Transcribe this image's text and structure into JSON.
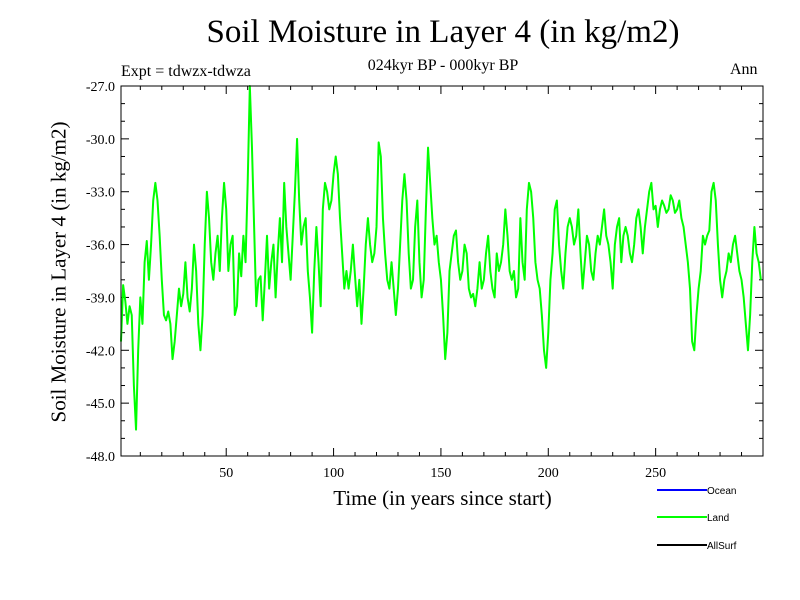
{
  "chart_data": {
    "type": "line",
    "title": "Soil Moisture in Layer 4 (in kg/m2)",
    "subtitle": "024kyr BP - 000kyr BP",
    "experiment": "Expt = tdwzx-tdwza",
    "season": "Ann",
    "xlabel": "Time (in years since start)",
    "ylabel": "Soil Moisture in Layer 4 (in kg/m2)",
    "xlim": [
      1,
      300
    ],
    "ylim": [
      -48,
      -27
    ],
    "x_ticks": [
      50,
      100,
      150,
      200,
      250
    ],
    "y_ticks": [
      -27,
      -30,
      -33,
      -36,
      -39,
      -42,
      -45,
      -48
    ],
    "y_tick_labels": [
      "-27.0",
      "-30.0",
      "-33.0",
      "-36.0",
      "-39.0",
      "-42.0",
      "-45.0",
      "-48.0"
    ],
    "legend": [
      {
        "name": "Ocean",
        "color": "#0000ff"
      },
      {
        "name": "Land",
        "color": "#00ff00"
      },
      {
        "name": "AllSurf",
        "color": "#000000"
      }
    ],
    "series": [
      {
        "name": "Land",
        "color": "#00ff00",
        "start_x": 1,
        "step": 1,
        "values": [
          -41.5,
          -38.3,
          -39.2,
          -40.5,
          -39.5,
          -40.0,
          -44.0,
          -46.5,
          -42.0,
          -39.0,
          -40.5,
          -37.0,
          -35.8,
          -38.0,
          -36.0,
          -33.5,
          -32.5,
          -33.5,
          -35.5,
          -38.0,
          -40.0,
          -40.3,
          -39.8,
          -40.5,
          -42.5,
          -41.5,
          -40.0,
          -38.5,
          -39.5,
          -38.8,
          -37.0,
          -39.0,
          -39.8,
          -38.5,
          -36.0,
          -37.5,
          -40.5,
          -42.0,
          -40.0,
          -36.0,
          -33.0,
          -34.5,
          -37.0,
          -38.0,
          -36.5,
          -35.5,
          -37.5,
          -34.5,
          -32.5,
          -34.0,
          -37.5,
          -36.0,
          -35.5,
          -40.0,
          -39.5,
          -36.5,
          -37.8,
          -35.5,
          -37.0,
          -32.5,
          -27.0,
          -30.5,
          -35.0,
          -39.5,
          -38.0,
          -37.8,
          -40.3,
          -38.0,
          -35.5,
          -38.5,
          -37.0,
          -36.0,
          -39.0,
          -36.5,
          -34.5,
          -37.0,
          -32.5,
          -35.0,
          -36.5,
          -38.0,
          -35.5,
          -33.0,
          -30.0,
          -33.5,
          -36.0,
          -35.0,
          -34.5,
          -37.5,
          -39.0,
          -41.0,
          -37.5,
          -35.0,
          -37.0,
          -39.5,
          -34.0,
          -32.5,
          -33.0,
          -34.0,
          -33.5,
          -32.0,
          -31.0,
          -32.0,
          -34.5,
          -36.5,
          -38.5,
          -37.5,
          -38.5,
          -37.5,
          -36.0,
          -37.8,
          -39.5,
          -38.0,
          -40.5,
          -38.5,
          -36.0,
          -34.5,
          -36.0,
          -37.0,
          -36.5,
          -35.0,
          -30.2,
          -31.0,
          -34.5,
          -36.5,
          -38.0,
          -38.5,
          -37.0,
          -38.5,
          -40.0,
          -38.5,
          -36.0,
          -33.5,
          -32.0,
          -33.5,
          -36.5,
          -38.5,
          -38.0,
          -35.0,
          -33.5,
          -37.0,
          -39.0,
          -38.0,
          -34.0,
          -30.5,
          -32.5,
          -34.5,
          -36.0,
          -35.5,
          -37.0,
          -38.0,
          -40.0,
          -42.5,
          -41.0,
          -37.5,
          -36.5,
          -35.5,
          -35.2,
          -37.0,
          -38.0,
          -37.5,
          -36.0,
          -36.5,
          -38.5,
          -39.0,
          -38.8,
          -39.5,
          -38.5,
          -37.0,
          -38.5,
          -38.0,
          -36.5,
          -35.5,
          -37.5,
          -38.5,
          -39.0,
          -36.5,
          -37.5,
          -37.0,
          -36.0,
          -34.0,
          -35.5,
          -37.5,
          -38.0,
          -37.5,
          -39.0,
          -38.5,
          -34.5,
          -37.0,
          -38.0,
          -34.0,
          -32.5,
          -33.0,
          -34.5,
          -37.0,
          -38.0,
          -38.5,
          -40.0,
          -42.0,
          -43.0,
          -41.0,
          -38.0,
          -36.5,
          -34.0,
          -33.5,
          -36.0,
          -37.5,
          -38.5,
          -36.5,
          -35.0,
          -34.5,
          -35.0,
          -36.0,
          -35.5,
          -34.0,
          -36.5,
          -38.5,
          -37.0,
          -35.5,
          -36.0,
          -37.5,
          -38.0,
          -36.5,
          -35.5,
          -36.0,
          -35.0,
          -34.0,
          -35.5,
          -36.0,
          -37.0,
          -38.5,
          -36.0,
          -35.0,
          -34.5,
          -37.0,
          -35.5,
          -35.0,
          -35.5,
          -36.5,
          -37.0,
          -36.0,
          -34.5,
          -34.0,
          -35.0,
          -36.5,
          -35.0,
          -34.0,
          -33.0,
          -32.5,
          -34.0,
          -33.8,
          -35.0,
          -34.0,
          -33.5,
          -33.8,
          -34.2,
          -34.0,
          -33.2,
          -33.5,
          -34.2,
          -34.0,
          -33.5,
          -34.5,
          -35.0,
          -36.0,
          -37.0,
          -38.5,
          -41.5,
          -42.0,
          -40.0,
          -38.5,
          -37.5,
          -35.5,
          -36.0,
          -35.5,
          -35.2,
          -33.0,
          -32.5,
          -33.5,
          -36.0,
          -38.0,
          -39.0,
          -38.0,
          -37.5,
          -36.5,
          -37.0,
          -36.0,
          -35.5,
          -36.5,
          -37.5,
          -38.0,
          -39.0,
          -40.5,
          -42.0,
          -40.0,
          -37.0,
          -35.0,
          -36.5,
          -37.0,
          -38.0
        ]
      },
      {
        "name": "Ocean",
        "color": "#0000ff",
        "values": []
      },
      {
        "name": "AllSurf",
        "color": "#000000",
        "values": []
      }
    ]
  }
}
